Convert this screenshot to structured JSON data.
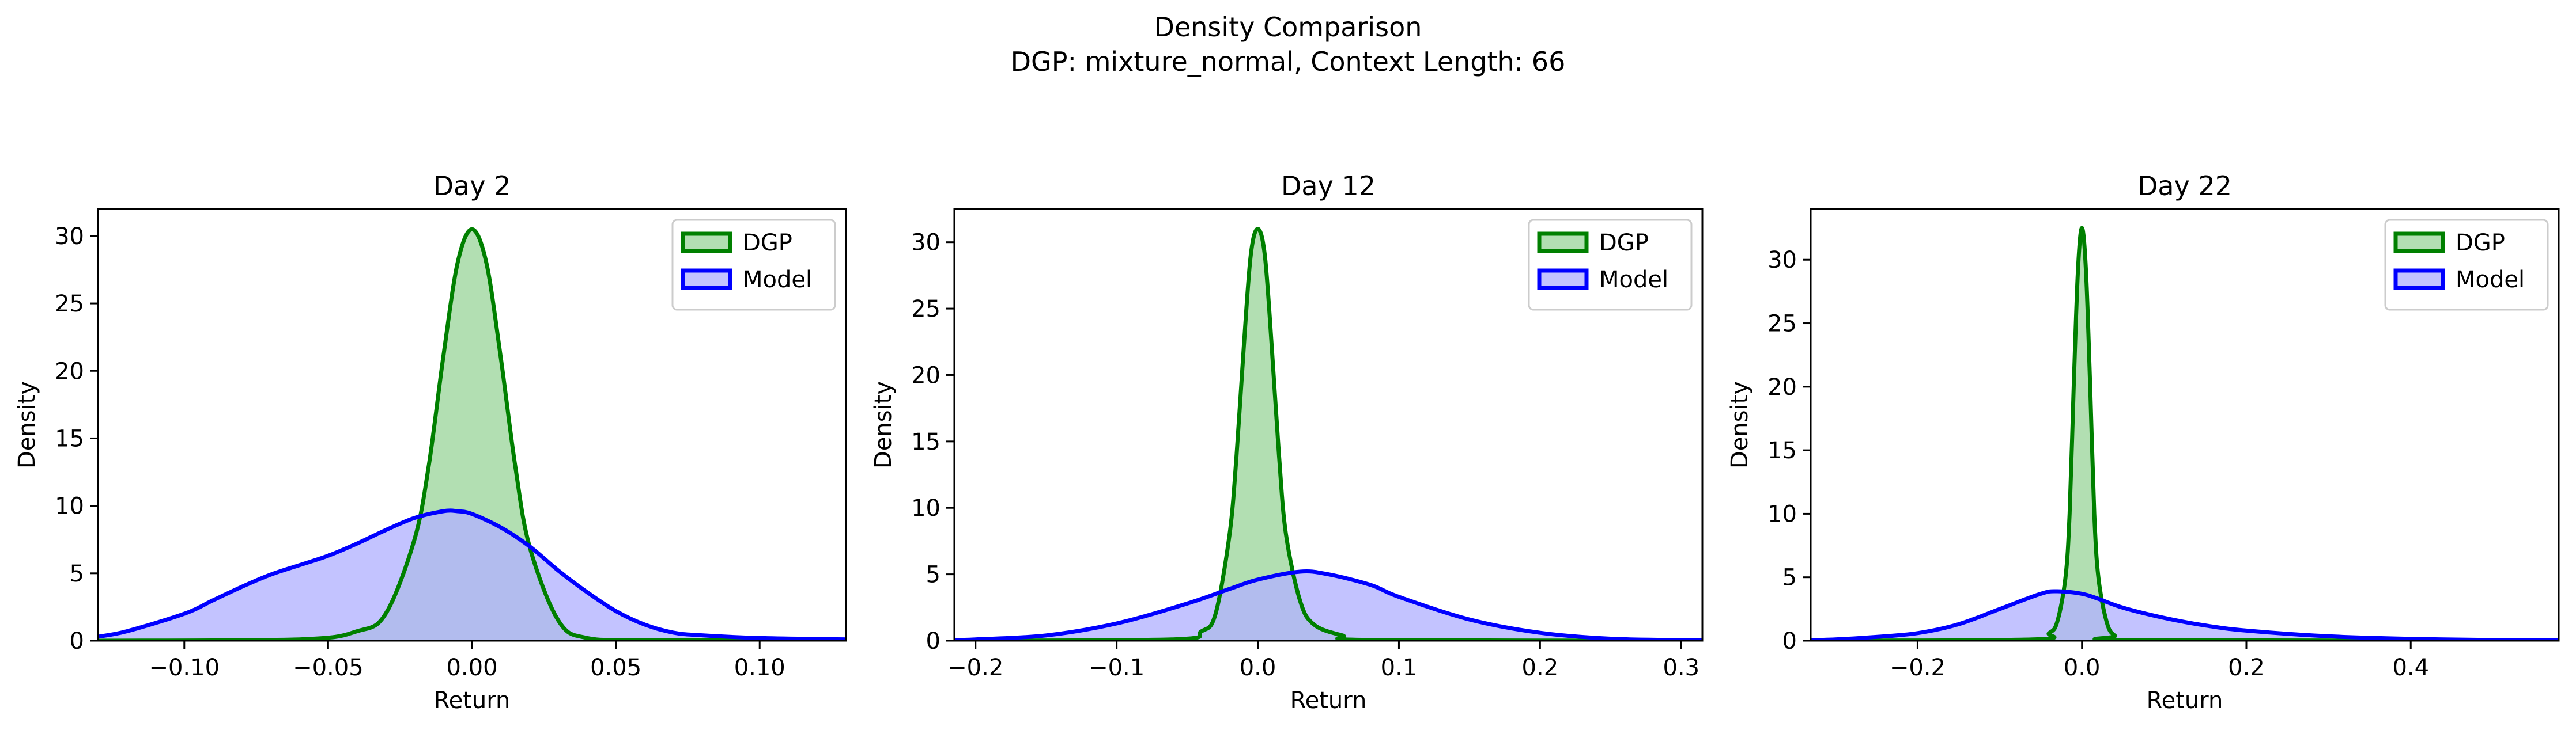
{
  "figure": {
    "suptitle_line1": "Density Comparison",
    "suptitle_line2": "DGP: mixture_normal, Context Length: 66"
  },
  "colors": {
    "dgp_line": "#008000",
    "dgp_fill": "#b2dfb2",
    "model_line": "#0000ff",
    "model_fill": "#b2b2ff"
  },
  "chart_data": [
    {
      "type": "area",
      "title": "Day 2",
      "xlabel": "Return",
      "ylabel": "Density",
      "xlim": [
        -0.13,
        0.13
      ],
      "ylim": [
        0,
        32
      ],
      "xticks": [
        -0.1,
        -0.05,
        0.0,
        0.05,
        0.1
      ],
      "xtick_labels": [
        "−0.10",
        "−0.05",
        "0.00",
        "0.05",
        "0.10"
      ],
      "yticks": [
        0,
        5,
        10,
        15,
        20,
        25,
        30
      ],
      "ytick_labels": [
        "0",
        "5",
        "10",
        "15",
        "20",
        "25",
        "30"
      ],
      "legend": "top-right",
      "series": [
        {
          "name": "DGP",
          "x": [
            -0.13,
            -0.06,
            -0.04,
            -0.03,
            -0.02,
            -0.015,
            -0.01,
            -0.005,
            0.0,
            0.005,
            0.01,
            0.015,
            0.02,
            0.03,
            0.04,
            0.06,
            0.13
          ],
          "values": [
            0,
            0.1,
            0.7,
            2.0,
            7.5,
            13.0,
            21.0,
            28.0,
            30.5,
            28.0,
            21.0,
            13.0,
            7.0,
            1.5,
            0.2,
            0.05,
            0
          ]
        },
        {
          "name": "Model",
          "x": [
            -0.13,
            -0.12,
            -0.1,
            -0.09,
            -0.08,
            -0.07,
            -0.06,
            -0.05,
            -0.04,
            -0.03,
            -0.02,
            -0.01,
            -0.005,
            0.0,
            0.01,
            0.02,
            0.03,
            0.04,
            0.05,
            0.06,
            0.07,
            0.08,
            0.1,
            0.13
          ],
          "values": [
            0.3,
            0.7,
            2.0,
            3.0,
            4.0,
            4.9,
            5.6,
            6.3,
            7.2,
            8.2,
            9.1,
            9.6,
            9.6,
            9.4,
            8.4,
            7.0,
            5.2,
            3.6,
            2.2,
            1.2,
            0.6,
            0.4,
            0.2,
            0.1
          ]
        }
      ]
    },
    {
      "type": "area",
      "title": "Day 12",
      "xlabel": "Return",
      "ylabel": "Density",
      "xlim": [
        -0.215,
        0.315
      ],
      "ylim": [
        0,
        32.5
      ],
      "xticks": [
        -0.2,
        -0.1,
        0.0,
        0.1,
        0.2,
        0.3
      ],
      "xtick_labels": [
        "−0.2",
        "−0.1",
        "0.0",
        "0.1",
        "0.2",
        "0.3"
      ],
      "yticks": [
        0,
        5,
        10,
        15,
        20,
        25,
        30
      ],
      "ytick_labels": [
        "0",
        "5",
        "10",
        "15",
        "20",
        "25",
        "30"
      ],
      "legend": "top-right",
      "series": [
        {
          "name": "DGP",
          "x": [
            -0.215,
            -0.06,
            -0.04,
            -0.03,
            -0.02,
            -0.015,
            -0.01,
            -0.005,
            0.0,
            0.005,
            0.01,
            0.015,
            0.02,
            0.03,
            0.04,
            0.06,
            0.08,
            0.315
          ],
          "values": [
            0,
            0.1,
            0.7,
            2.0,
            8.0,
            14.0,
            22.0,
            29.0,
            31.0,
            29.0,
            22.0,
            14.0,
            8.0,
            3.0,
            1.2,
            0.4,
            0.05,
            0
          ]
        },
        {
          "name": "Model",
          "x": [
            -0.215,
            -0.2,
            -0.15,
            -0.1,
            -0.05,
            -0.02,
            0.0,
            0.03,
            0.05,
            0.08,
            0.1,
            0.15,
            0.2,
            0.25,
            0.3,
            0.315
          ],
          "values": [
            0.05,
            0.1,
            0.4,
            1.3,
            2.8,
            3.9,
            4.6,
            5.2,
            5.0,
            4.2,
            3.3,
            1.6,
            0.6,
            0.15,
            0.05,
            0.03
          ]
        }
      ]
    },
    {
      "type": "area",
      "title": "Day 22",
      "xlabel": "Return",
      "ylabel": "Density",
      "xlim": [
        -0.33,
        0.58
      ],
      "ylim": [
        0,
        34
      ],
      "xticks": [
        -0.2,
        0.0,
        0.2,
        0.4
      ],
      "xtick_labels": [
        "−0.2",
        "0.0",
        "0.2",
        "0.4"
      ],
      "yticks": [
        0,
        5,
        10,
        15,
        20,
        25,
        30
      ],
      "ytick_labels": [
        "0",
        "5",
        "10",
        "15",
        "20",
        "25",
        "30"
      ],
      "legend": "top-right",
      "series": [
        {
          "name": "DGP",
          "x": [
            -0.33,
            -0.06,
            -0.04,
            -0.03,
            -0.02,
            -0.015,
            -0.01,
            -0.005,
            0.0,
            0.005,
            0.01,
            0.015,
            0.02,
            0.03,
            0.04,
            0.06,
            0.58
          ],
          "values": [
            0,
            0.1,
            0.6,
            1.5,
            5.0,
            10.0,
            20.0,
            29.0,
            32.5,
            29.0,
            20.0,
            10.0,
            5.0,
            1.5,
            0.4,
            0.05,
            0
          ]
        },
        {
          "name": "Model",
          "x": [
            -0.33,
            -0.3,
            -0.25,
            -0.2,
            -0.15,
            -0.1,
            -0.05,
            -0.03,
            0.0,
            0.02,
            0.05,
            0.1,
            0.15,
            0.2,
            0.3,
            0.4,
            0.5,
            0.58
          ],
          "values": [
            0.05,
            0.1,
            0.3,
            0.6,
            1.3,
            2.5,
            3.7,
            3.9,
            3.7,
            3.3,
            2.6,
            1.8,
            1.2,
            0.8,
            0.35,
            0.15,
            0.05,
            0.03
          ]
        }
      ]
    }
  ]
}
